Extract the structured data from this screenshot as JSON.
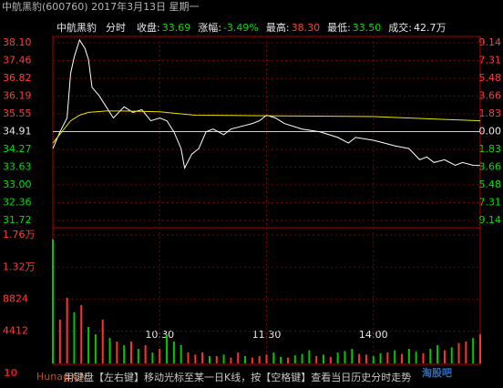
{
  "header": {
    "title": "中航黑豹(600760) 2017年3月13日 星期一",
    "name": "中航黑豹",
    "mode": "分时",
    "stats": [
      {
        "label": "收盘:",
        "value": "33.69",
        "color": "#00e000"
      },
      {
        "label": "涨幅:",
        "value": "-3.49%",
        "color": "#00e000"
      },
      {
        "label": "最高:",
        "value": "38.30",
        "color": "#ff3c3c"
      },
      {
        "label": "最低:",
        "value": "33.50",
        "color": "#00e000"
      },
      {
        "label": "成交:",
        "value": "42.7万",
        "color": "#e8e8e8"
      }
    ]
  },
  "footer": {
    "hint": "用键盘【左右键】移动光标至某一日K线，按【空格键】查看当日历史分时走势"
  },
  "watermarks": [
    "10",
    "Hunag.CN",
    "淘股吧"
  ],
  "chart_data": [
    {
      "type": "line",
      "xlim": [
        0,
        240
      ],
      "xticks": [
        {
          "value": 60,
          "label": "10:30"
        },
        {
          "value": 120,
          "label": "11:30"
        },
        {
          "value": 180,
          "label": "14:00"
        }
      ],
      "ylim": [
        31.72,
        38.1
      ],
      "yticks": [
        {
          "value": 38.1,
          "label": "38.10"
        },
        37.46,
        36.82,
        36.19,
        35.55,
        34.91,
        34.27,
        33.63,
        {
          "value": 33,
          "label": "33.00"
        },
        32.36,
        31.72
      ],
      "y2lim": [
        -9.14,
        9.14
      ],
      "y2ticks": [
        9.14,
        7.31,
        5.48,
        3.66,
        1.83,
        {
          "value": 0,
          "label": "0.00"
        },
        {
          "value": -1.83,
          "label": "1.83"
        },
        {
          "value": -3.66,
          "label": "3.66"
        },
        {
          "value": -5.48,
          "label": "5.48"
        },
        {
          "value": -7.31,
          "label": "7.31"
        },
        {
          "value": -9.14,
          "label": "9.14"
        }
      ],
      "grid": true,
      "series": [
        {
          "color": "#ffffff",
          "x": [
            0,
            4,
            8,
            10,
            12,
            15,
            18,
            20,
            22,
            26,
            30,
            34,
            40,
            45,
            50,
            55,
            60,
            64,
            68,
            72,
            74,
            78,
            82,
            86,
            90,
            96,
            100,
            106,
            112,
            116,
            120,
            125,
            130,
            140,
            150,
            160,
            166,
            170,
            180,
            186,
            192,
            200,
            206,
            210,
            214,
            220,
            226,
            230,
            236,
            240
          ],
          "values": [
            34.3,
            34.9,
            35.4,
            37.0,
            37.6,
            38.2,
            37.9,
            37.5,
            36.5,
            36.2,
            35.8,
            35.4,
            35.8,
            35.6,
            35.7,
            35.3,
            35.4,
            35.3,
            34.9,
            34.3,
            33.6,
            34.1,
            34.3,
            34.9,
            35.0,
            34.8,
            35.0,
            35.1,
            35.2,
            35.3,
            35.5,
            35.4,
            35.2,
            35.0,
            34.9,
            34.7,
            34.5,
            34.7,
            34.6,
            34.5,
            34.4,
            34.3,
            33.9,
            34.0,
            33.8,
            33.9,
            33.7,
            33.8,
            33.7,
            33.69
          ]
        },
        {
          "color": "#e6e600",
          "x": [
            0,
            5,
            10,
            15,
            20,
            30,
            40,
            60,
            80,
            120,
            180,
            220,
            240
          ],
          "values": [
            34.5,
            34.9,
            35.3,
            35.5,
            35.6,
            35.65,
            35.65,
            35.62,
            35.5,
            35.48,
            35.45,
            35.35,
            35.3
          ]
        }
      ]
    },
    {
      "type": "bar",
      "xlim": [
        0,
        240
      ],
      "ylim": [
        0,
        17600
      ],
      "yticks": [
        {
          "value": 17600,
          "label": "1.76万"
        },
        {
          "value": 13200,
          "label": "1.32万"
        },
        8824,
        4412
      ],
      "x": [
        0,
        4,
        8,
        12,
        16,
        20,
        24,
        28,
        32,
        36,
        40,
        44,
        48,
        52,
        56,
        60,
        64,
        68,
        72,
        76,
        80,
        84,
        88,
        92,
        96,
        100,
        104,
        108,
        112,
        116,
        120,
        124,
        128,
        132,
        136,
        140,
        144,
        148,
        152,
        156,
        160,
        164,
        168,
        172,
        176,
        180,
        184,
        188,
        192,
        196,
        200,
        204,
        208,
        212,
        216,
        220,
        224,
        228,
        232,
        236,
        240
      ],
      "values": [
        17000,
        6000,
        9000,
        7000,
        8000,
        5000,
        4000,
        6000,
        3500,
        3000,
        2500,
        3000,
        2000,
        2500,
        1500,
        2000,
        4000,
        3000,
        2500,
        1500,
        1200,
        1500,
        1000,
        1000,
        1200,
        800,
        1500,
        1000,
        800,
        1000,
        1200,
        1500,
        900,
        800,
        1100,
        1300,
        1800,
        1000,
        1200,
        900,
        1500,
        1700,
        2000,
        1300,
        1200,
        1000,
        1400,
        1500,
        1800,
        1300,
        2000,
        1600,
        1400,
        2000,
        2500,
        1800,
        2200,
        2800,
        3000,
        3500,
        4000
      ],
      "colors": [
        "#00c800",
        "#ff3232",
        "#ff3232",
        "#00c800",
        "#ff3232",
        "#00c800",
        "#00c800",
        "#ff3232",
        "#00c800",
        "#ff3232",
        "#00c800",
        "#ff3232",
        "#00c800",
        "#ff3232",
        "#00c800",
        "#ff3232",
        "#00c800",
        "#00c800",
        "#00c800",
        "#ff3232",
        "#ff3232",
        "#ff3232",
        "#00c800",
        "#ff3232",
        "#00c800",
        "#ff3232",
        "#ff3232",
        "#00c800",
        "#ff3232",
        "#ff3232",
        "#ff3232",
        "#00c800",
        "#00c800",
        "#ff3232",
        "#00c800",
        "#00c800",
        "#00c800",
        "#ff3232",
        "#00c800",
        "#ff3232",
        "#00c800",
        "#00c800",
        "#00c800",
        "#ff3232",
        "#ff3232",
        "#00c800",
        "#00c800",
        "#ff3232",
        "#00c800",
        "#ff3232",
        "#00c800",
        "#00c800",
        "#ff3232",
        "#00c800",
        "#00c800",
        "#ff3232",
        "#00c800",
        "#ff3232",
        "#ff3232",
        "#00c800",
        "#ff3232"
      ]
    }
  ]
}
